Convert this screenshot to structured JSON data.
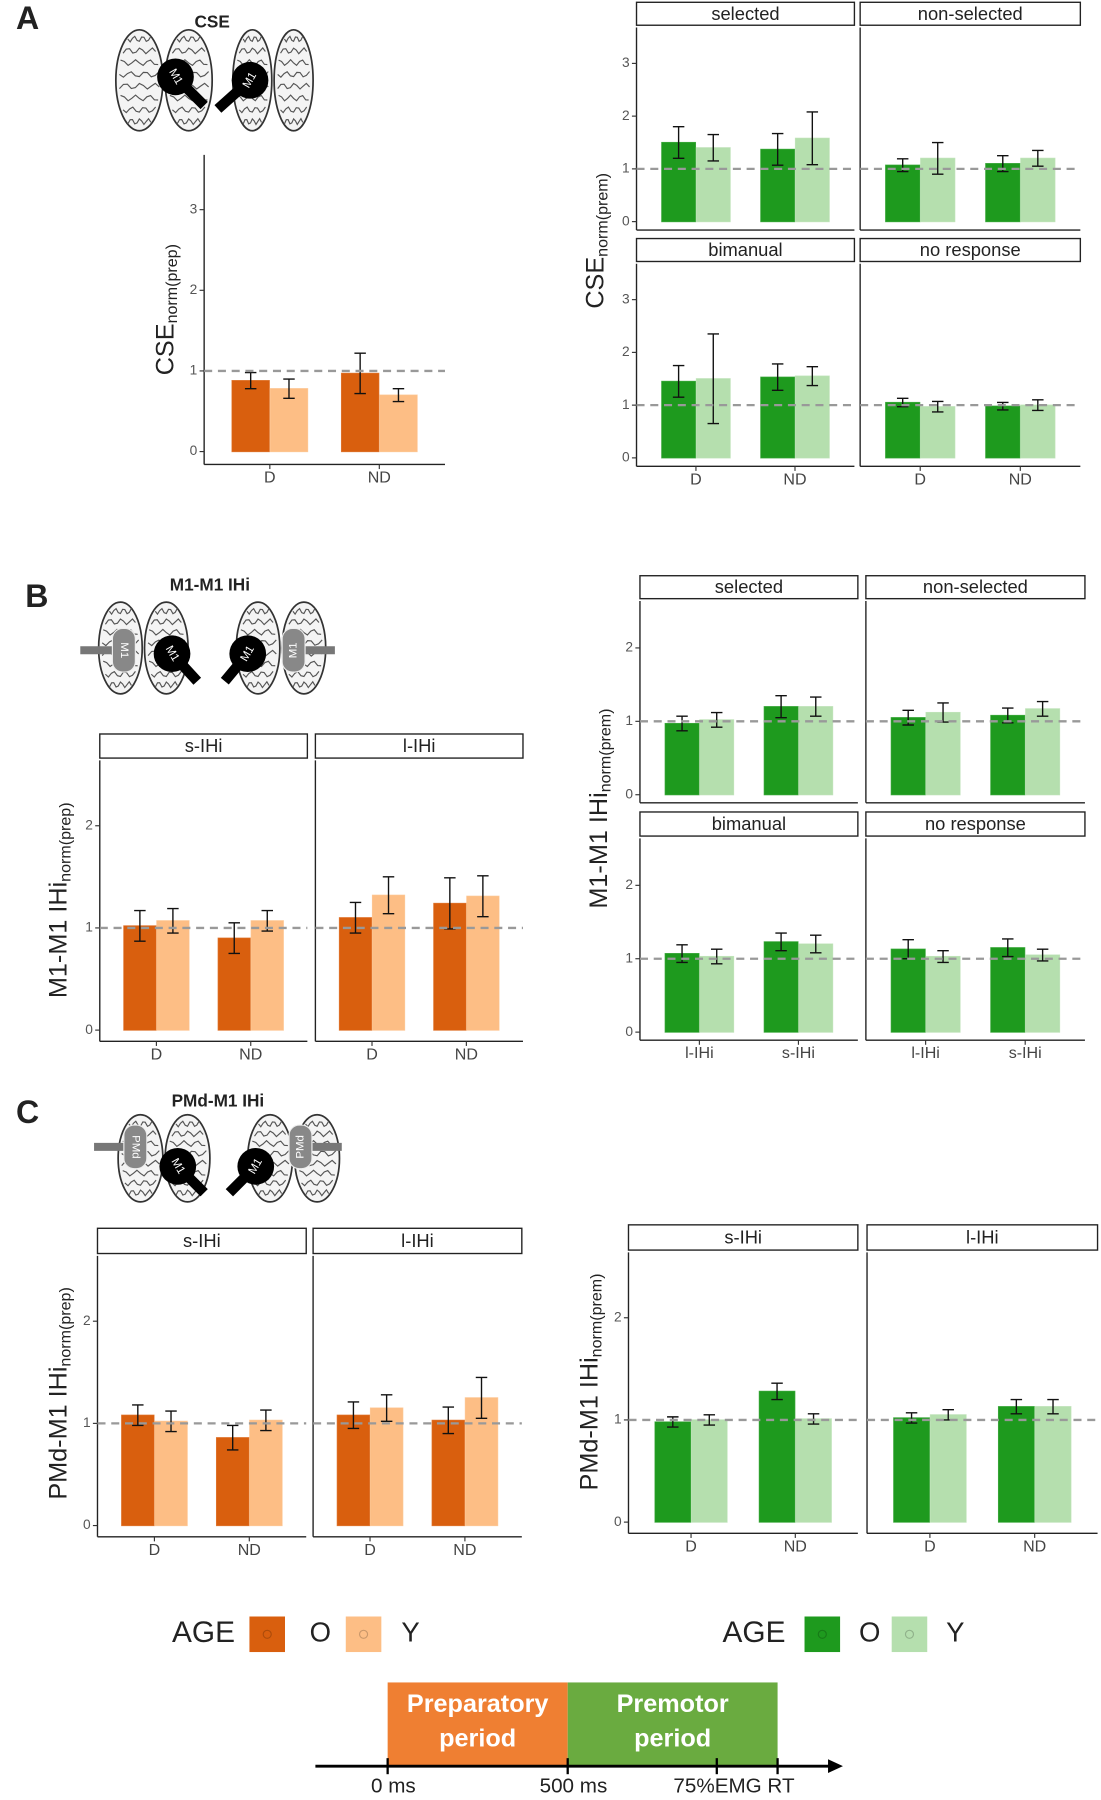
{
  "panels": [
    {
      "letter": "A",
      "title": "CSE",
      "coils": [
        "M1",
        "M1"
      ]
    },
    {
      "letter": "B",
      "title": "M1-M1 IHi",
      "coils": [
        "M1",
        "M1"
      ],
      "side_coils": [
        "M1",
        "M1"
      ]
    },
    {
      "letter": "C",
      "title": "PMd-M1 IHi",
      "coils": [
        "M1",
        "M1"
      ],
      "side_coils": [
        "PMd",
        "PMd"
      ]
    }
  ],
  "chart_data": [
    {
      "type": "bar",
      "ylabel": "CSE",
      "ylabel_sub": "norm(prep)",
      "categories": [
        "D",
        "ND"
      ],
      "colors": [
        "#d95f0e",
        "#fdbe85"
      ],
      "ylim": [
        -0.16,
        3.68
      ],
      "yticks": [
        0,
        1,
        2,
        3
      ],
      "reference_line": 1,
      "facets": [
        {
          "series": [
            {
              "values": [
                0.88,
                0.97
              ],
              "errors": [
                0.1,
                0.25
              ]
            },
            {
              "values": [
                0.78,
                0.7
              ],
              "errors": [
                0.12,
                0.08
              ]
            }
          ]
        }
      ]
    },
    {
      "type": "bar",
      "ylabel": "CSE",
      "ylabel_sub": "norm(prem)",
      "categories": [
        "D",
        "ND"
      ],
      "colors": [
        "#1e9a1e",
        "#b5dfae"
      ],
      "ylim": [
        -0.16,
        3.68
      ],
      "yticks": [
        0,
        1,
        2,
        3
      ],
      "reference_line": 1,
      "facets": [
        {
          "title": "selected",
          "series": [
            {
              "values": [
                1.5,
                1.37
              ],
              "errors": [
                0.3,
                0.3
              ]
            },
            {
              "values": [
                1.4,
                1.58
              ],
              "errors": [
                0.25,
                0.5
              ]
            }
          ]
        },
        {
          "title": "non-selected",
          "series": [
            {
              "values": [
                1.07,
                1.1
              ],
              "errors": [
                0.12,
                0.15
              ]
            },
            {
              "values": [
                1.2,
                1.2
              ],
              "errors": [
                0.3,
                0.15
              ]
            }
          ]
        },
        {
          "title": "bimanual",
          "series": [
            {
              "values": [
                1.45,
                1.53
              ],
              "errors": [
                0.3,
                0.25
              ]
            },
            {
              "values": [
                1.5,
                1.55
              ],
              "errors": [
                0.85,
                0.18
              ]
            }
          ]
        },
        {
          "title": "no response",
          "series": [
            {
              "values": [
                1.05,
                0.98
              ],
              "errors": [
                0.08,
                0.07
              ]
            },
            {
              "values": [
                0.97,
                1.0
              ],
              "errors": [
                0.1,
                0.1
              ]
            }
          ]
        }
      ]
    },
    {
      "type": "bar",
      "ylabel": "M1-M1 IHi",
      "ylabel_sub": "norm(prep)",
      "categories": [
        "D",
        "ND"
      ],
      "colors": [
        "#d95f0e",
        "#fdbe85"
      ],
      "ylim": [
        -0.11,
        2.64
      ],
      "yticks": [
        0,
        1,
        2
      ],
      "reference_line": 1,
      "facets": [
        {
          "title": "s-IHi",
          "series": [
            {
              "values": [
                1.02,
                0.9
              ],
              "errors": [
                0.15,
                0.15
              ]
            },
            {
              "values": [
                1.07,
                1.07
              ],
              "errors": [
                0.12,
                0.1
              ]
            }
          ]
        },
        {
          "title": "l-IHi",
          "series": [
            {
              "values": [
                1.1,
                1.24
              ],
              "errors": [
                0.15,
                0.25
              ]
            },
            {
              "values": [
                1.32,
                1.31
              ],
              "errors": [
                0.18,
                0.2
              ]
            }
          ]
        }
      ]
    },
    {
      "type": "bar",
      "ylabel": "M1-M1 IHi",
      "ylabel_sub": "norm(prem)",
      "categories": [
        "l-IHi",
        "s-IHi"
      ],
      "colors": [
        "#1e9a1e",
        "#b5dfae"
      ],
      "ylim": [
        -0.11,
        2.64
      ],
      "yticks": [
        0,
        1,
        2
      ],
      "reference_line": 1,
      "facets": [
        {
          "title": "selected",
          "series": [
            {
              "values": [
                0.97,
                1.2
              ],
              "errors": [
                0.1,
                0.15
              ]
            },
            {
              "values": [
                1.02,
                1.2
              ],
              "errors": [
                0.1,
                0.13
              ]
            }
          ]
        },
        {
          "title": "non-selected",
          "series": [
            {
              "values": [
                1.05,
                1.08
              ],
              "errors": [
                0.1,
                0.1
              ]
            },
            {
              "values": [
                1.12,
                1.17
              ],
              "errors": [
                0.13,
                0.1
              ]
            }
          ]
        },
        {
          "title": "bimanual",
          "series": [
            {
              "values": [
                1.07,
                1.23
              ],
              "errors": [
                0.12,
                0.12
              ]
            },
            {
              "values": [
                1.03,
                1.2
              ],
              "errors": [
                0.1,
                0.12
              ]
            }
          ]
        },
        {
          "title": "no response",
          "series": [
            {
              "values": [
                1.13,
                1.15
              ],
              "errors": [
                0.13,
                0.12
              ]
            },
            {
              "values": [
                1.03,
                1.05
              ],
              "errors": [
                0.08,
                0.08
              ]
            }
          ]
        }
      ]
    },
    {
      "type": "bar",
      "ylabel": "PMd-M1 IHi",
      "ylabel_sub": "norm(prep)",
      "categories": [
        "D",
        "ND"
      ],
      "colors": [
        "#d95f0e",
        "#fdbe85"
      ],
      "ylim": [
        -0.11,
        2.64
      ],
      "yticks": [
        0,
        1,
        2
      ],
      "reference_line": 1,
      "facets": [
        {
          "title": "s-IHi",
          "series": [
            {
              "values": [
                1.08,
                0.86
              ],
              "errors": [
                0.1,
                0.12
              ]
            },
            {
              "values": [
                1.02,
                1.03
              ],
              "errors": [
                0.1,
                0.1
              ]
            }
          ]
        },
        {
          "title": "l-IHi",
          "series": [
            {
              "values": [
                1.08,
                1.03
              ],
              "errors": [
                0.13,
                0.13
              ]
            },
            {
              "values": [
                1.15,
                1.25
              ],
              "errors": [
                0.13,
                0.2
              ]
            }
          ]
        }
      ]
    },
    {
      "type": "bar",
      "ylabel": "PMd-M1 IHi",
      "ylabel_sub": "norm(prem)",
      "categories": [
        "D",
        "ND"
      ],
      "colors": [
        "#1e9a1e",
        "#b5dfae"
      ],
      "ylim": [
        -0.11,
        2.64
      ],
      "yticks": [
        0,
        1,
        2
      ],
      "reference_line": 1,
      "facets": [
        {
          "title": "s-IHi",
          "series": [
            {
              "values": [
                0.98,
                1.28
              ],
              "errors": [
                0.05,
                0.08
              ]
            },
            {
              "values": [
                1.0,
                1.01
              ],
              "errors": [
                0.05,
                0.05
              ]
            }
          ]
        },
        {
          "title": "l-IHi",
          "series": [
            {
              "values": [
                1.02,
                1.13
              ],
              "errors": [
                0.05,
                0.07
              ]
            },
            {
              "values": [
                1.05,
                1.13
              ],
              "errors": [
                0.05,
                0.07
              ]
            }
          ]
        }
      ]
    }
  ],
  "legends": [
    {
      "title": "AGE",
      "entries": [
        {
          "name": "O",
          "color": "#d95f0e"
        },
        {
          "name": "Y",
          "color": "#fdbe85"
        }
      ]
    },
    {
      "title": "AGE",
      "entries": [
        {
          "name": "O",
          "color": "#1e9a1e"
        },
        {
          "name": "Y",
          "color": "#b5dfae"
        }
      ]
    }
  ],
  "timeline": {
    "periods": [
      {
        "label": [
          "Preparatory",
          "period"
        ],
        "color": "#ef7f32"
      },
      {
        "label": [
          "Premotor",
          "period"
        ],
        "color": "#6aab40"
      }
    ],
    "ticks": [
      "0 ms",
      "500 ms",
      "75%EMG RT"
    ]
  }
}
